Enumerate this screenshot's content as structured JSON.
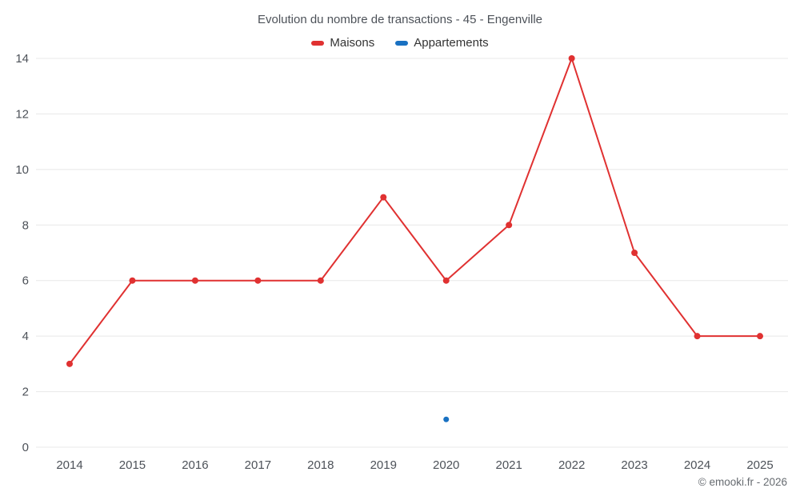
{
  "header": {
    "title": "Evolution du nombre de transactions - 45 - Engenville"
  },
  "legend": {
    "items": [
      {
        "label": "Maisons",
        "color": "#e03131"
      },
      {
        "label": "Appartements",
        "color": "#1971c2"
      }
    ]
  },
  "footer": {
    "copyright": "© emooki.fr - 2026"
  },
  "chart_data": {
    "type": "line",
    "title": "Evolution du nombre de transactions - 45 - Engenville",
    "categories": [
      2014,
      2015,
      2016,
      2017,
      2018,
      2019,
      2020,
      2021,
      2022,
      2023,
      2024,
      2025
    ],
    "series": [
      {
        "name": "Maisons",
        "color": "#e03131",
        "draw_line": true,
        "values": [
          3,
          6,
          6,
          6,
          6,
          9,
          6,
          8,
          14,
          7,
          4,
          4
        ]
      },
      {
        "name": "Appartements",
        "color": "#1971c2",
        "draw_line": false,
        "values": [
          null,
          null,
          null,
          null,
          null,
          null,
          1,
          null,
          null,
          null,
          null,
          null
        ]
      }
    ],
    "xlabel": "",
    "ylabel": "",
    "ylim": [
      0,
      14
    ],
    "yticks": [
      0,
      2,
      4,
      6,
      8,
      10,
      12,
      14
    ],
    "grid": "horizontal",
    "legend_position": "top"
  }
}
